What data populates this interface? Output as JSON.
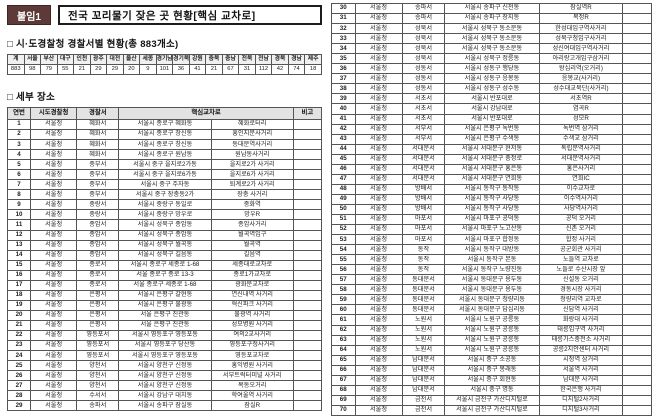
{
  "page": {
    "attachment_label": "붙임1",
    "title": "전국 꼬리물기 잦은 곳 현황[핵심 교차로]",
    "section1_title": "□ 시·도경찰청 경찰서별 현황(총 883개소)",
    "section2_title": "□ 세부 장소"
  },
  "summary_table": {
    "rows": [
      [
        "계",
        "서울",
        "부산",
        "대구",
        "인천",
        "광주",
        "대전",
        "울산",
        "세종",
        "경기남",
        "경기북",
        "강원",
        "충북",
        "충남",
        "전북",
        "전남",
        "경북",
        "경남",
        "제주"
      ],
      [
        "883",
        "98",
        "79",
        "55",
        "21",
        "29",
        "29",
        "20",
        "9",
        "101",
        "36",
        "41",
        "21",
        "67",
        "31",
        "112",
        "42",
        "74",
        "18"
      ]
    ]
  },
  "detail_table": {
    "headers": [
      "연번",
      "시도경찰청",
      "경찰서",
      "핵심교차로",
      "비고"
    ],
    "rows": [
      [
        "1",
        "서울청",
        "혜화서",
        "서울시 종로구 혜화동",
        "혜화로터리",
        ""
      ],
      [
        "2",
        "서울청",
        "혜화서",
        "서울시 종로구 창신동",
        "흥인지문사거리",
        ""
      ],
      [
        "3",
        "서울청",
        "혜화서",
        "서울시 종로구 창신동",
        "동대문역사거리",
        ""
      ],
      [
        "4",
        "서울청",
        "혜화서",
        "서울시 종로구 원남동",
        "원남동사거리",
        ""
      ],
      [
        "5",
        "서울청",
        "중부서",
        "서울시 중구 을지로2가동",
        "을지로2가 사거리",
        ""
      ],
      [
        "6",
        "서울청",
        "중부서",
        "서울시 중구 을지로6가동",
        "을지로6가 사거리",
        ""
      ],
      [
        "7",
        "서울청",
        "중부서",
        "서울시 중구 주자동",
        "퇴계로2가 사거리",
        ""
      ],
      [
        "8",
        "서울청",
        "중부서",
        "서울시 중구 장충동2가",
        "장충 사거리",
        ""
      ],
      [
        "9",
        "서울청",
        "중랑서",
        "서울시 중랑구 동일로",
        "중화역",
        ""
      ],
      [
        "10",
        "서울청",
        "중랑서",
        "서울시 중랑구 망우로",
        "망우R",
        ""
      ],
      [
        "11",
        "서울청",
        "종암서",
        "서울시 성북구 종암동",
        "종암사거리",
        ""
      ],
      [
        "12",
        "서울청",
        "종암서",
        "서울시 성북구 종암동",
        "월곡역입구",
        ""
      ],
      [
        "13",
        "서울청",
        "종암서",
        "서울시 성북구 월곡동",
        "월곡역",
        ""
      ],
      [
        "14",
        "서울청",
        "종암서",
        "서울시 성북구 길음동",
        "길음역",
        ""
      ],
      [
        "15",
        "서울청",
        "종로서",
        "서울시 종로구 세종로 1-68",
        "세종대로교차로",
        ""
      ],
      [
        "16",
        "서울청",
        "종로서",
        "서울 종로구 종로 13-3",
        "종로1가교차로",
        ""
      ],
      [
        "17",
        "서울청",
        "종로서",
        "서울 종로구 세종로 1-68",
        "광화문교차로",
        ""
      ],
      [
        "18",
        "서울청",
        "은평서",
        "서울시 은평구 갈현동",
        "연신내역 사거리",
        ""
      ],
      [
        "19",
        "서울청",
        "은평서",
        "서울시 은평구 불광동",
        "혁신파크 사거리",
        ""
      ],
      [
        "20",
        "서울청",
        "은평서",
        "서울 은평구 진관동",
        "불광역 사거리",
        ""
      ],
      [
        "21",
        "서울청",
        "은평서",
        "서울 은평구 진관동",
        "성모병원 사거리",
        ""
      ],
      [
        "22",
        "서울청",
        "영등포서",
        "서울시 영등포구 영등포동",
        "여의2교사거리",
        ""
      ],
      [
        "23",
        "서울청",
        "영등포서",
        "서울시 영등포구 당산동",
        "영등포구청사거리",
        ""
      ],
      [
        "24",
        "서울청",
        "영등포서",
        "서울시 영등포구 영등포동",
        "영등포교차로",
        ""
      ],
      [
        "25",
        "서울청",
        "양천서",
        "서울시 양천구 신정동",
        "홍익병원 사거리",
        ""
      ],
      [
        "26",
        "서울청",
        "양천서",
        "서울시 양천구 신정동",
        "서부트럭터미널 사거리",
        ""
      ],
      [
        "27",
        "서울청",
        "양천서",
        "서울시 양천구 신정동",
        "목동오거리",
        ""
      ],
      [
        "28",
        "서울청",
        "수서서",
        "서울시 강남구 대치동",
        "학여울역 사거리",
        ""
      ],
      [
        "29",
        "서울청",
        "송파서",
        "서울시 송파구 잠실동",
        "잠실R",
        ""
      ]
    ]
  },
  "detail_table_right": {
    "rows": [
      [
        "30",
        "서울청",
        "송파서",
        "서울시 송파구 신천동",
        "잠실역R",
        ""
      ],
      [
        "31",
        "서울청",
        "송파서",
        "서울시 송파구 장지동",
        "복정R",
        ""
      ],
      [
        "32",
        "서울청",
        "성북서",
        "서울시 성북구 동소문동",
        "한성대입구역사거리",
        ""
      ],
      [
        "33",
        "서울청",
        "성북서",
        "서울시 성북구 동소문동",
        "성북구청입구사거리",
        ""
      ],
      [
        "34",
        "서울청",
        "성북서",
        "서울시 성북구 동소문동",
        "성신여대입구역사거리",
        ""
      ],
      [
        "35",
        "서울청",
        "성북서",
        "서울시 성북구 정릉동",
        "아리랑고개입구삼거리",
        ""
      ],
      [
        "36",
        "서울청",
        "성동서",
        "서울시 성동구 행당동",
        "왕십리역(오거리)",
        ""
      ],
      [
        "37",
        "서울청",
        "성동서",
        "서울시 성동구 응봉동",
        "응봉교(사거리)",
        ""
      ],
      [
        "38",
        "서울청",
        "성동서",
        "서울시 성동구 성수동",
        "성수대교북단(사거리)",
        ""
      ],
      [
        "39",
        "서울청",
        "서초서",
        "서울시 반포대로",
        "서초역R",
        ""
      ],
      [
        "40",
        "서울청",
        "서초서",
        "서울시 강남대로",
        "염곡R",
        ""
      ],
      [
        "41",
        "서울청",
        "서초서",
        "서울시 반포대로",
        "성모R",
        ""
      ],
      [
        "42",
        "서울청",
        "서부서",
        "서울시 은평구 녹번동",
        "녹번역 삼거리",
        ""
      ],
      [
        "43",
        "서울청",
        "서부서",
        "서울시 은평구 수색동",
        "수색교 삼거리",
        ""
      ],
      [
        "44",
        "서울청",
        "서대문서",
        "서울시 서대문구 현저동",
        "독립문역사거리",
        ""
      ],
      [
        "45",
        "서울청",
        "서대문서",
        "서울시 서대문구 충정로",
        "서대문역사거리",
        ""
      ],
      [
        "46",
        "서울청",
        "서대문서",
        "서울시 서대문구 홍은동",
        "홍은사거리",
        ""
      ],
      [
        "47",
        "서울청",
        "서대문서",
        "서울시 서대문구 연희동",
        "연희IC",
        ""
      ],
      [
        "48",
        "서울청",
        "방배서",
        "서울시 동작구 동작동",
        "이수교차로",
        ""
      ],
      [
        "49",
        "서울청",
        "방배서",
        "서울시 동작구 사당동",
        "이수역사거리",
        ""
      ],
      [
        "50",
        "서울청",
        "방배서",
        "서울시 동작구 사당동",
        "사당역사거리",
        ""
      ],
      [
        "51",
        "서울청",
        "마포서",
        "서울시 마포구 공덕동",
        "공덕 오거리",
        ""
      ],
      [
        "52",
        "서울청",
        "마포서",
        "서울시 마포구 노고산동",
        "신촌 오거리",
        ""
      ],
      [
        "53",
        "서울청",
        "마포서",
        "서울시 마포구 합정동",
        "합정 사거리",
        ""
      ],
      [
        "54",
        "서울청",
        "동작",
        "서울시 동작구 대방동",
        "공군회관 사거리",
        ""
      ],
      [
        "55",
        "서울청",
        "동작",
        "서울시 동작구 본동",
        "노들역 교차로",
        ""
      ],
      [
        "56",
        "서울청",
        "동작",
        "서울시 동작구 노량진동",
        "노들로 수산시장 앞",
        ""
      ],
      [
        "57",
        "서울청",
        "동대문서",
        "서울시 동대문구 용두동",
        "신설동 오거리",
        ""
      ],
      [
        "58",
        "서울청",
        "동대문서",
        "서울시 동대문구 용두동",
        "경동시장 사거리",
        ""
      ],
      [
        "59",
        "서울청",
        "동대문서",
        "서울시 동대문구 청량리동",
        "청량리역 교차로",
        ""
      ],
      [
        "60",
        "서울청",
        "동대문서",
        "서울시 동대문구 답십리동",
        "신답역 사거리",
        ""
      ],
      [
        "61",
        "서울청",
        "노원서",
        "서울시 노원구 공릉동",
        "화랑대 사거리",
        ""
      ],
      [
        "62",
        "서울청",
        "노원서",
        "서울시 노원구 공릉동",
        "태릉입구역 사거리",
        ""
      ],
      [
        "63",
        "서울청",
        "노원서",
        "서울시 노원구 공릉동",
        "태릉가스충전소 사거리",
        ""
      ],
      [
        "64",
        "서울청",
        "노원서",
        "서울시 노원구 공릉동",
        "공릉2치안센터 사거리",
        ""
      ],
      [
        "65",
        "서울청",
        "남대문서",
        "서울시 중구 소공동",
        "시청역 삼거리",
        ""
      ],
      [
        "66",
        "서울청",
        "남대문서",
        "서울시 중구 봉래동",
        "서울역 사거리",
        ""
      ],
      [
        "67",
        "서울청",
        "남대문서",
        "서울시 중구 회현동",
        "남대문 사거리",
        ""
      ],
      [
        "68",
        "서울청",
        "남대문서",
        "서울시 중구 명동",
        "한국은행 사거리",
        ""
      ],
      [
        "69",
        "서울청",
        "금천서",
        "서울시 금천구 가산디지털로",
        "디지털2사거리",
        ""
      ],
      [
        "70",
        "서울청",
        "금천서",
        "서울시 금천구 가산디지털로",
        "디지털3사거리",
        ""
      ]
    ]
  }
}
